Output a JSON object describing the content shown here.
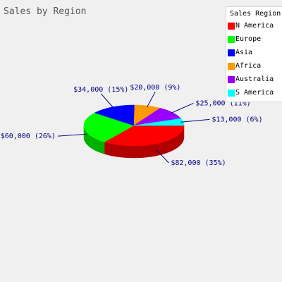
{
  "chart_data": {
    "type": "pie",
    "three_d": true,
    "title": "Sales by Region",
    "legend_title": "Sales Region",
    "legend_position": "top-right",
    "slices": [
      {
        "name": "N America",
        "value": 82000,
        "percent": 35,
        "label": "$82,000 (35%)",
        "color": "#ff0000",
        "side_color": "#b00000"
      },
      {
        "name": "Europe",
        "value": 60000,
        "percent": 26,
        "label": "$60,000 (26%)",
        "color": "#00ff00",
        "side_color": "#00b000"
      },
      {
        "name": "Asia",
        "value": 34000,
        "percent": 15,
        "label": "$34,000 (15%)",
        "color": "#0000ff",
        "side_color": "#0000b0"
      },
      {
        "name": "Africa",
        "value": 20000,
        "percent": 9,
        "label": "$20,000 (9%)",
        "color": "#ff9900",
        "side_color": "#b36b00"
      },
      {
        "name": "Australia",
        "value": 25000,
        "percent": 11,
        "label": "$25,000 (11%)",
        "color": "#9900ff",
        "side_color": "#6b00b3"
      },
      {
        "name": "S America",
        "value": 13000,
        "percent": 6,
        "label": "$13,000 (6%)",
        "color": "#00ffff",
        "side_color": "#00b3b3"
      }
    ]
  }
}
